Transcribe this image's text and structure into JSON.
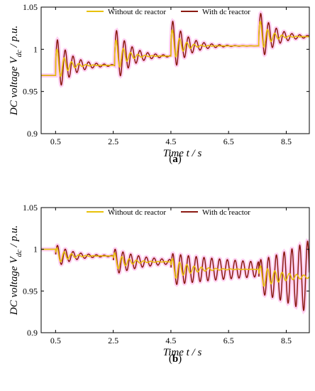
{
  "colors": {
    "without": "#e8c10a",
    "with": "#8b1a12",
    "envelope": "#ff7ad9",
    "axis": "#000000"
  },
  "chart_data": [
    {
      "id": "a",
      "type": "line",
      "panel_label": {
        "open": "(",
        "letter": "a",
        "close": ")"
      },
      "ylabel": {
        "prefix": "DC voltage ",
        "var": "V",
        "sub": "dc",
        "suffix": " / p.u."
      },
      "xlabel": {
        "var": "Time ",
        "t": "t",
        "suffix": " / s"
      },
      "xlim": [
        0,
        9.3
      ],
      "ylim": [
        0.9,
        1.05
      ],
      "xticks": [
        0.5,
        2.5,
        4.5,
        6.5,
        8.5
      ],
      "yticks": [
        0.9,
        0.95,
        1,
        1.05
      ],
      "ytick_labels": [
        "0.9",
        "0.95",
        "1",
        "1.05"
      ],
      "legend_position": "top",
      "series": [
        {
          "name": "Without dc reactor",
          "key": "without"
        },
        {
          "name": "With dc reactor",
          "key": "with"
        }
      ],
      "steps": [
        {
          "t": 0,
          "level": 0.969
        },
        {
          "t": 0.5,
          "level": 0.981,
          "amp_with": 0.034,
          "amp_without": 0.022
        },
        {
          "t": 2.55,
          "level": 0.992,
          "amp_with": 0.034,
          "amp_without": 0.022
        },
        {
          "t": 4.5,
          "level": 1.004,
          "amp_with": 0.033,
          "amp_without": 0.022
        },
        {
          "t": 7.55,
          "level": 1.015,
          "amp_with": 0.031,
          "amp_without": 0.021
        }
      ],
      "damping": 2.2,
      "period": 0.27
    },
    {
      "id": "b",
      "type": "line",
      "panel_label": {
        "open": "(",
        "letter": "b",
        "close": ")"
      },
      "ylabel": {
        "prefix": "DC voltage ",
        "var": "V",
        "sub": "dc",
        "suffix": " / p.u."
      },
      "xlabel": {
        "var": "Time ",
        "t": "t",
        "suffix": " / s"
      },
      "xlim": [
        0,
        9.3
      ],
      "ylim": [
        0.9,
        1.05
      ],
      "xticks": [
        0.5,
        2.5,
        4.5,
        6.5,
        8.5
      ],
      "yticks": [
        0.9,
        0.95,
        1,
        1.05
      ],
      "ytick_labels": [
        "0.9",
        "0.95",
        "1",
        "1.05"
      ],
      "legend_position": "top",
      "series": [
        {
          "name": "Without dc reactor",
          "key": "without"
        },
        {
          "name": "With dc reactor",
          "key": "with"
        }
      ],
      "steps": [
        {
          "t": 0,
          "level": 1.0
        },
        {
          "t": 0.5,
          "level": 0.992,
          "amp_with": 0.014,
          "amp_without": 0.011,
          "damp_with": 1.6,
          "damp_without": 2.6
        },
        {
          "t": 2.5,
          "level": 0.985,
          "amp_with": 0.016,
          "amp_without": 0.012,
          "damp_with": 0.9,
          "damp_without": 2.2
        },
        {
          "t": 4.5,
          "level": 0.976,
          "amp_with": 0.019,
          "amp_without": 0.014,
          "damp_with": 0.25,
          "damp_without": 1.6
        },
        {
          "t": 7.55,
          "level": 0.967,
          "amp_with": 0.02,
          "amp_without": 0.014,
          "damp_with": -0.45,
          "damp_without": 1.2
        }
      ],
      "period": 0.27
    }
  ]
}
